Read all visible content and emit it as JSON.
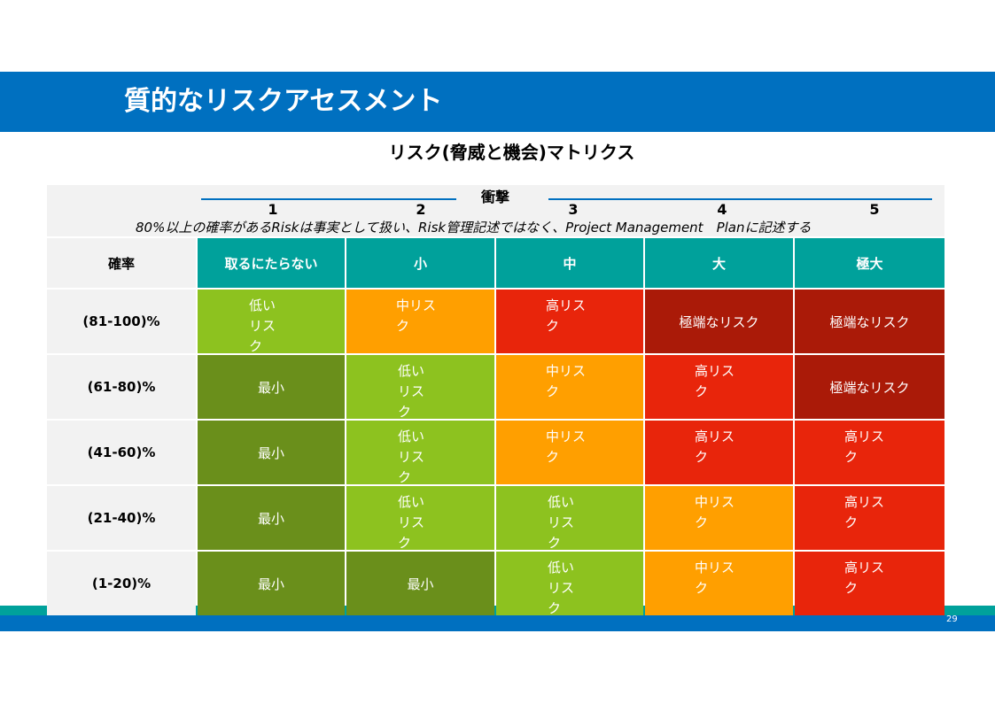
{
  "title": "質的なリスクアセスメント",
  "subtitle": "リスク(脅威と機会)マトリクス",
  "impact": {
    "label": "衝撃",
    "scale": [
      "1",
      "2",
      "3",
      "4",
      "5"
    ]
  },
  "note": "80%以上の確率があるRiskは事実として扱い、Risk管理記述ではなく、Project Management　Planに記述する",
  "probability_label": "確率",
  "columns": [
    "取るにたらない",
    "小",
    "中",
    "大",
    "極大"
  ],
  "rows": [
    {
      "label": "(81-100)%",
      "cells": [
        "低いリスク",
        "中リスク",
        "高リスク",
        "極端なリスク",
        "極端なリスク"
      ]
    },
    {
      "label": "(61-80)%",
      "cells": [
        "最小",
        "低いリスク",
        "中リスク",
        "高リスク",
        "極端なリスク"
      ]
    },
    {
      "label": "(41-60)%",
      "cells": [
        "最小",
        "低いリスク",
        "中リスク",
        "高リスク",
        "高リスク"
      ]
    },
    {
      "label": "(21-40)%",
      "cells": [
        "最小",
        "低いリスク",
        "低いリスク",
        "中リスク",
        "高リスク"
      ]
    },
    {
      "label": "(1-20)%",
      "cells": [
        "最小",
        "最小",
        "低いリスク",
        "中リスク",
        "高リスク"
      ]
    }
  ],
  "colors": {
    "header_bar": "#0070c0",
    "column_header": "#00a19b",
    "minimal": "#6a8f1b",
    "low": "#8dc21f",
    "medium": "#ff9f00",
    "high": "#e8250b",
    "extreme": "#aa1a08"
  },
  "page_number": "29"
}
